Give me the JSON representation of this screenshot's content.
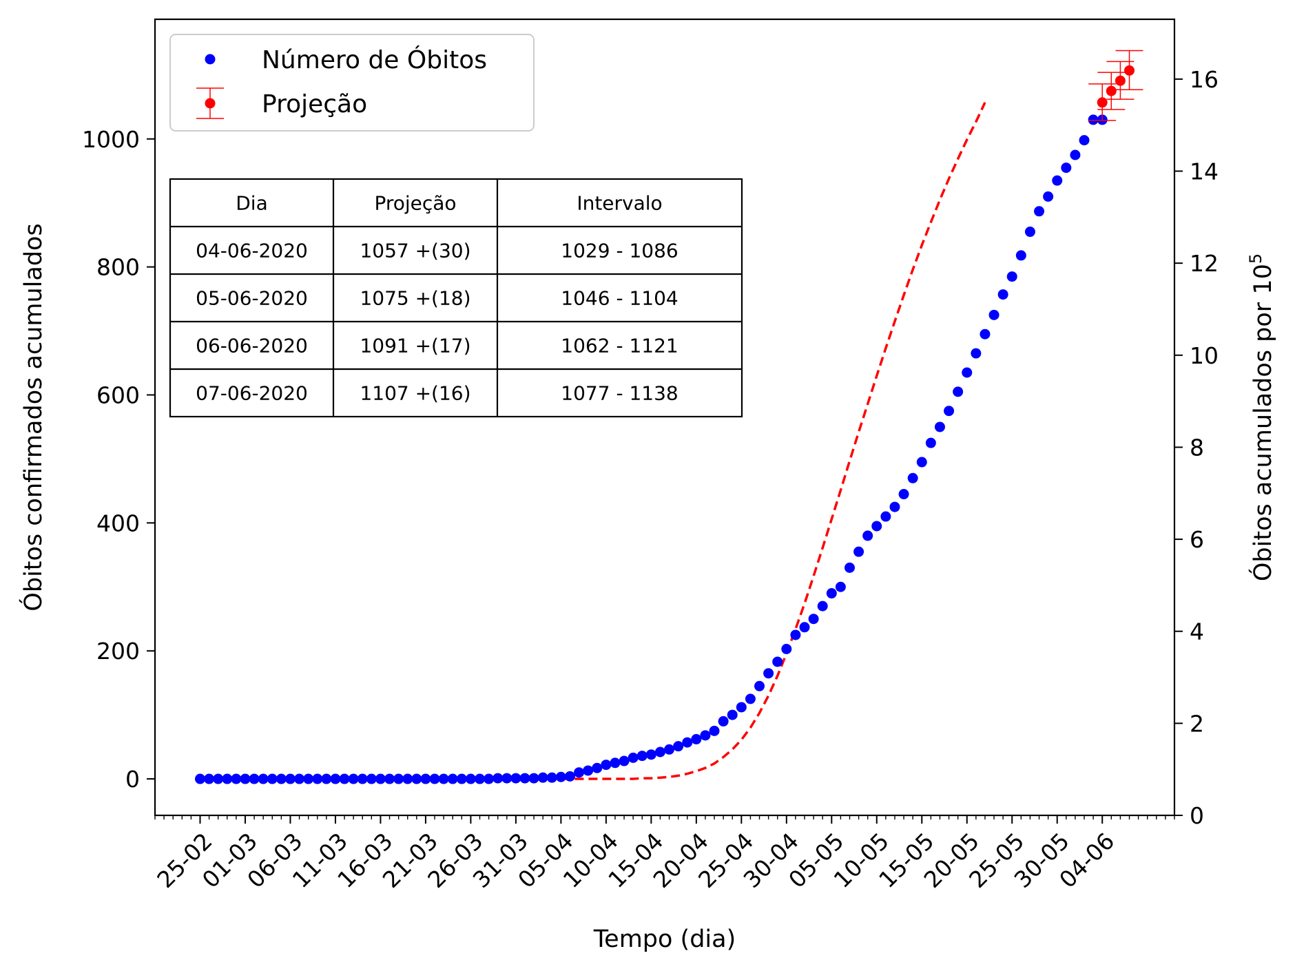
{
  "chart_data": {
    "type": "scatter",
    "title": "",
    "xlabel": "Tempo (dia)",
    "ylabel": "Óbitos confirmados acumulados",
    "y2label": "Óbitos acumulados por 10",
    "y2label_exp": "5",
    "grid": false,
    "legend_position": "top-left",
    "x_start_date": "2020-02-25",
    "xlim": [
      -5,
      108
    ],
    "ylim": [
      -57,
      1187
    ],
    "y2lim": [
      0,
      17.3
    ],
    "x_tick_labels": [
      "25-02",
      "01-03",
      "06-03",
      "11-03",
      "16-03",
      "21-03",
      "26-03",
      "31-03",
      "05-04",
      "10-04",
      "15-04",
      "20-04",
      "25-04",
      "30-04",
      "05-05",
      "10-05",
      "15-05",
      "20-05",
      "25-05",
      "30-05",
      "04-06"
    ],
    "y_ticks": [
      0,
      200,
      400,
      600,
      800,
      1000
    ],
    "y2_ticks": [
      0,
      2,
      4,
      6,
      8,
      10,
      12,
      14,
      16
    ],
    "series": [
      {
        "name": "Número de Óbitos",
        "type": "scatter",
        "color": "#0000ff",
        "values": [
          0,
          0,
          0,
          0,
          0,
          0,
          0,
          0,
          0,
          0,
          0,
          0,
          0,
          0,
          0,
          0,
          0,
          0,
          0,
          0,
          0,
          0,
          0,
          0,
          0,
          0,
          0,
          0,
          0,
          0,
          0,
          0,
          0,
          1,
          1,
          1,
          1,
          1,
          2,
          2,
          3,
          4,
          10,
          13,
          17,
          22,
          25,
          28,
          33,
          36,
          38,
          42,
          46,
          51,
          57,
          62,
          68,
          75,
          90,
          100,
          112,
          125,
          145,
          165,
          183,
          203,
          225,
          237,
          250,
          270,
          290,
          300,
          330,
          355,
          380,
          395,
          410,
          425,
          445,
          470,
          495,
          525,
          550,
          575,
          605,
          635,
          665,
          695,
          725,
          757,
          785,
          818,
          855,
          887,
          910,
          935,
          955,
          975,
          998,
          1030,
          1030
        ]
      },
      {
        "name": "",
        "type": "line",
        "style": "dashed",
        "color": "#ff0000",
        "x_start": 40,
        "values": [
          0,
          0,
          0,
          0,
          0,
          0,
          0,
          0,
          0,
          1,
          1,
          2,
          3,
          5,
          8,
          12,
          17,
          24,
          34,
          46,
          61,
          80,
          103,
          130,
          161,
          196,
          234,
          274,
          317,
          361,
          406,
          451,
          497,
          542,
          586,
          630,
          673,
          715,
          756,
          796,
          834,
          870,
          905,
          938,
          969,
          999,
          1027,
          1057
        ]
      },
      {
        "name": "Projeção",
        "type": "errorbar",
        "color": "#ff0000",
        "x": [
          100,
          101,
          102,
          103
        ],
        "values": [
          1057,
          1075,
          1091,
          1107
        ],
        "lower": [
          1029,
          1046,
          1062,
          1077
        ],
        "upper": [
          1086,
          1104,
          1121,
          1138
        ]
      }
    ],
    "table": {
      "headers": [
        "Dia",
        "Projeção",
        "Intervalo"
      ],
      "rows": [
        [
          "04-06-2020",
          "1057 +(30)",
          "1029 - 1086"
        ],
        [
          "05-06-2020",
          "1075 +(18)",
          "1046 - 1104"
        ],
        [
          "06-06-2020",
          "1091 +(17)",
          "1062 - 1121"
        ],
        [
          "07-06-2020",
          "1107 +(16)",
          "1077 - 1138"
        ]
      ]
    }
  }
}
